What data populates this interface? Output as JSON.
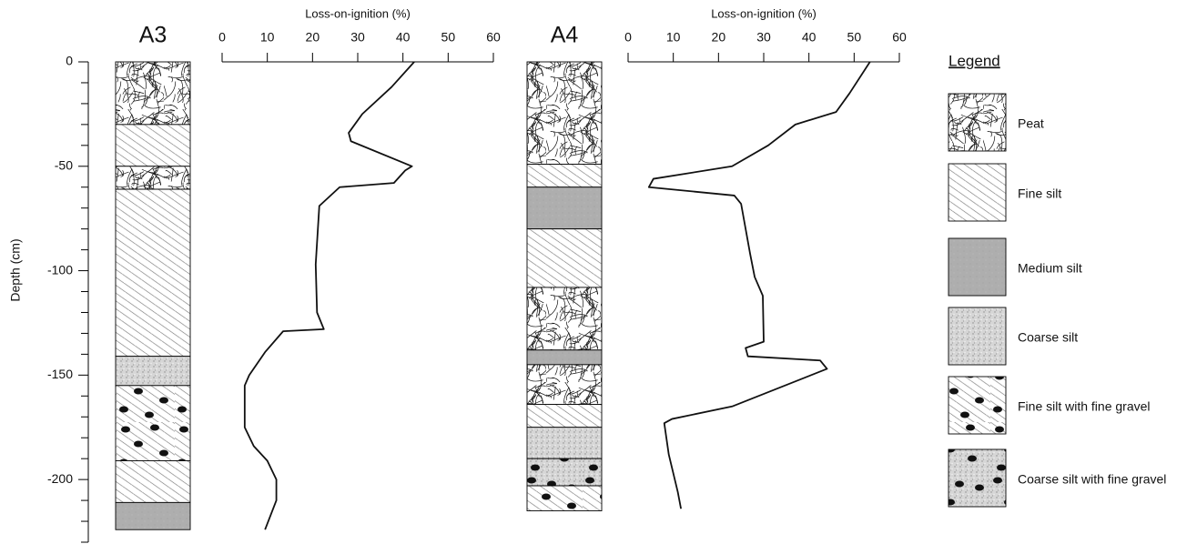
{
  "chart_data": [
    {
      "type": "core-loi",
      "title": "A3",
      "x_label": "Loss-on-ignition (%)",
      "y_label": "Depth (cm)",
      "xlim": [
        0,
        60
      ],
      "xticks": [
        0,
        10,
        20,
        30,
        40,
        50,
        60
      ],
      "ylim": [
        0,
        -230
      ],
      "yticks": [
        0,
        -50,
        -100,
        -150,
        -200
      ],
      "yminorticks": [
        -10,
        -20,
        -30,
        -40,
        -60,
        -70,
        -80,
        -90,
        -110,
        -120,
        -130,
        -140,
        -160,
        -170,
        -180,
        -190,
        -210,
        -220,
        -230
      ],
      "depth": [
        0,
        -12,
        -25,
        -34,
        -38,
        -50,
        -52,
        -58,
        -60,
        -69,
        -97,
        -120,
        -128,
        -129,
        -139,
        -150,
        -155,
        -175,
        -184,
        -191,
        -200,
        -210,
        -224
      ],
      "loi": [
        42.5,
        37.5,
        31,
        28,
        28.5,
        42,
        40.5,
        38,
        26,
        21.5,
        20.7,
        21,
        22.5,
        13.5,
        9.5,
        6,
        5,
        5,
        7,
        10,
        12,
        12,
        9.5
      ],
      "layers": [
        {
          "lithology": "Peat",
          "top": 0,
          "bottom": -30
        },
        {
          "lithology": "Fine silt",
          "top": -30,
          "bottom": -50
        },
        {
          "lithology": "Peat",
          "top": -50,
          "bottom": -61
        },
        {
          "lithology": "Fine silt",
          "top": -61,
          "bottom": -141
        },
        {
          "lithology": "Coarse silt",
          "top": -141,
          "bottom": -155
        },
        {
          "lithology": "Fine silt with fine gravel",
          "top": -155,
          "bottom": -191
        },
        {
          "lithology": "Fine silt",
          "top": -191,
          "bottom": -211
        },
        {
          "lithology": "Medium silt",
          "top": -211,
          "bottom": -224
        }
      ]
    },
    {
      "type": "core-loi",
      "title": "A4",
      "x_label": "Loss-on-ignition (%)",
      "xlim": [
        0,
        60
      ],
      "xticks": [
        0,
        10,
        20,
        30,
        40,
        50,
        60
      ],
      "ylim": [
        0,
        -230
      ],
      "depth": [
        0,
        -15,
        -24,
        -30,
        -40,
        -50,
        -56,
        -60,
        -64,
        -68,
        -92,
        -103,
        -112,
        -134,
        -137,
        -141,
        -143,
        -147,
        -165,
        -171,
        -173,
        -188,
        -206,
        -214
      ],
      "loi": [
        53.5,
        49,
        46,
        37,
        31,
        23,
        5.6,
        4.6,
        23.5,
        25,
        27,
        28,
        29.8,
        30,
        26,
        26.5,
        42.5,
        44,
        23,
        9.7,
        8,
        9,
        11,
        11.7
      ],
      "layers": [
        {
          "lithology": "Peat",
          "top": 0,
          "bottom": -49
        },
        {
          "lithology": "Fine silt",
          "top": -49,
          "bottom": -60
        },
        {
          "lithology": "Medium silt",
          "top": -60,
          "bottom": -80
        },
        {
          "lithology": "Fine silt",
          "top": -80,
          "bottom": -108
        },
        {
          "lithology": "Peat",
          "top": -108,
          "bottom": -138
        },
        {
          "lithology": "Medium silt",
          "top": -138,
          "bottom": -145
        },
        {
          "lithology": "Peat",
          "top": -145,
          "bottom": -164
        },
        {
          "lithology": "Fine silt",
          "top": -164,
          "bottom": -175
        },
        {
          "lithology": "Coarse silt",
          "top": -175,
          "bottom": -190
        },
        {
          "lithology": "Coarse silt with fine gravel",
          "top": -190,
          "bottom": -203
        },
        {
          "lithology": "Fine silt with fine gravel",
          "top": -203,
          "bottom": -215
        }
      ]
    }
  ],
  "legend": {
    "title": "Legend",
    "items": [
      "Peat",
      "Fine silt",
      "Medium silt",
      "Coarse silt",
      "Fine silt with fine gravel",
      "Coarse silt with fine gravel"
    ]
  }
}
